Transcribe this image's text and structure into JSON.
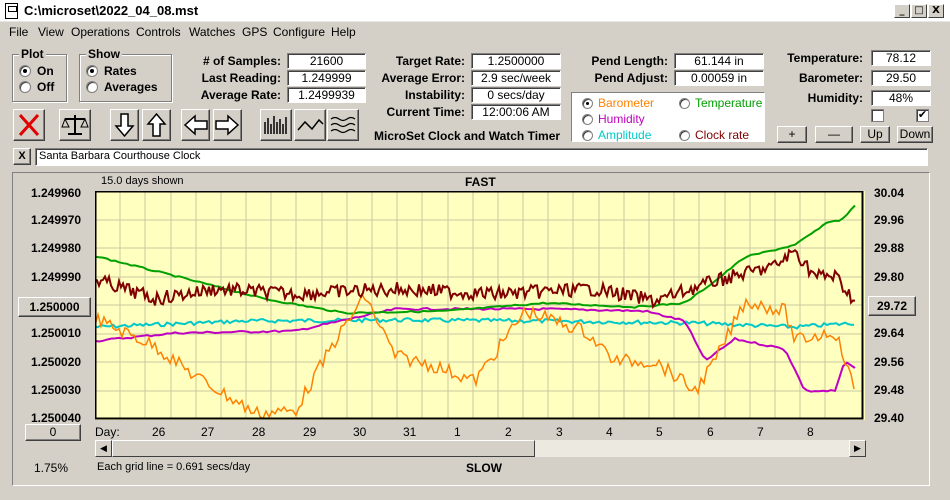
{
  "window": {
    "title": "C:\\microset\\2022_04_08.mst",
    "minimize": "_",
    "maximize": "□",
    "close": "X"
  },
  "menu": [
    "File",
    "View",
    "Operations",
    "Controls",
    "Watches",
    "GPS",
    "Configure",
    "Help"
  ],
  "plot_group": {
    "title": "Plot",
    "on": "On",
    "off": "Off",
    "selected": "On"
  },
  "show_group": {
    "title": "Show",
    "rates": "Rates",
    "averages": "Averages",
    "selected": "Rates"
  },
  "stats": {
    "samples_label": "# of Samples:",
    "samples": "21600",
    "last_label": "Last Reading:",
    "last": "1.249999",
    "avg_label": "Average Rate:",
    "avg": "1.2499939"
  },
  "target": {
    "target_label": "Target Rate:",
    "target": "1.2500000",
    "error_label": "Average Error:",
    "error": "2.9 sec/week",
    "instab_label": "Instability:",
    "instab": "0 secs/day",
    "time_label": "Current Time:",
    "time": "12:00:06 AM"
  },
  "pend": {
    "length_label": "Pend Length:",
    "length": "61.144 in",
    "adjust_label": "Pend Adjust:",
    "adjust": "0.00059 in"
  },
  "env": {
    "temp_label": "Temperature:",
    "temp": "78.12",
    "baro_label": "Barometer:",
    "baro": "29.50",
    "hum_label": "Humidity:",
    "hum": "48%"
  },
  "env_checks": [
    false,
    true
  ],
  "series_options": [
    {
      "label": "Barometer",
      "color": "#ff8000",
      "selected": true
    },
    {
      "label": "Temperature",
      "color": "#00a000",
      "selected": false
    },
    {
      "label": "Humidity",
      "color": "#c000c0",
      "selected": false
    },
    {
      "label": "Amplitude",
      "color": "#00c8c8",
      "selected": false
    },
    {
      "label": "Clock rate",
      "color": "#800000",
      "selected": false
    }
  ],
  "app_label": "MicroSet Clock and Watch Timer",
  "scale_buttons": {
    "plus": "+",
    "minus": "—",
    "up": "Up",
    "down": "Down"
  },
  "clock_close": "X",
  "clock_name": "Santa Barbara Courthouse Clock",
  "chart": {
    "days_shown": "15.0 days shown",
    "fast": "FAST",
    "slow": "SLOW",
    "left_ticks": [
      "1.249960",
      "1.249970",
      "1.249980",
      "1.249990",
      "1.250000",
      "1.250010",
      "1.250020",
      "1.250030",
      "1.250040"
    ],
    "left_selected": "1.250000",
    "right_ticks": [
      "30.04",
      "29.96",
      "29.88",
      "29.80",
      "29.72",
      "29.64",
      "29.56",
      "29.48",
      "29.40"
    ],
    "right_selected": "29.72",
    "x_label": "Day:",
    "x_ticks": [
      "26",
      "27",
      "28",
      "29",
      "30",
      "31",
      "1",
      "2",
      "3",
      "4",
      "5",
      "6",
      "7",
      "8"
    ],
    "offset_button": "0",
    "percent": "1.75%",
    "grid_note": "Each grid line = 0.691 secs/day",
    "scroll_left": "◀",
    "scroll_right": "▶"
  }
}
